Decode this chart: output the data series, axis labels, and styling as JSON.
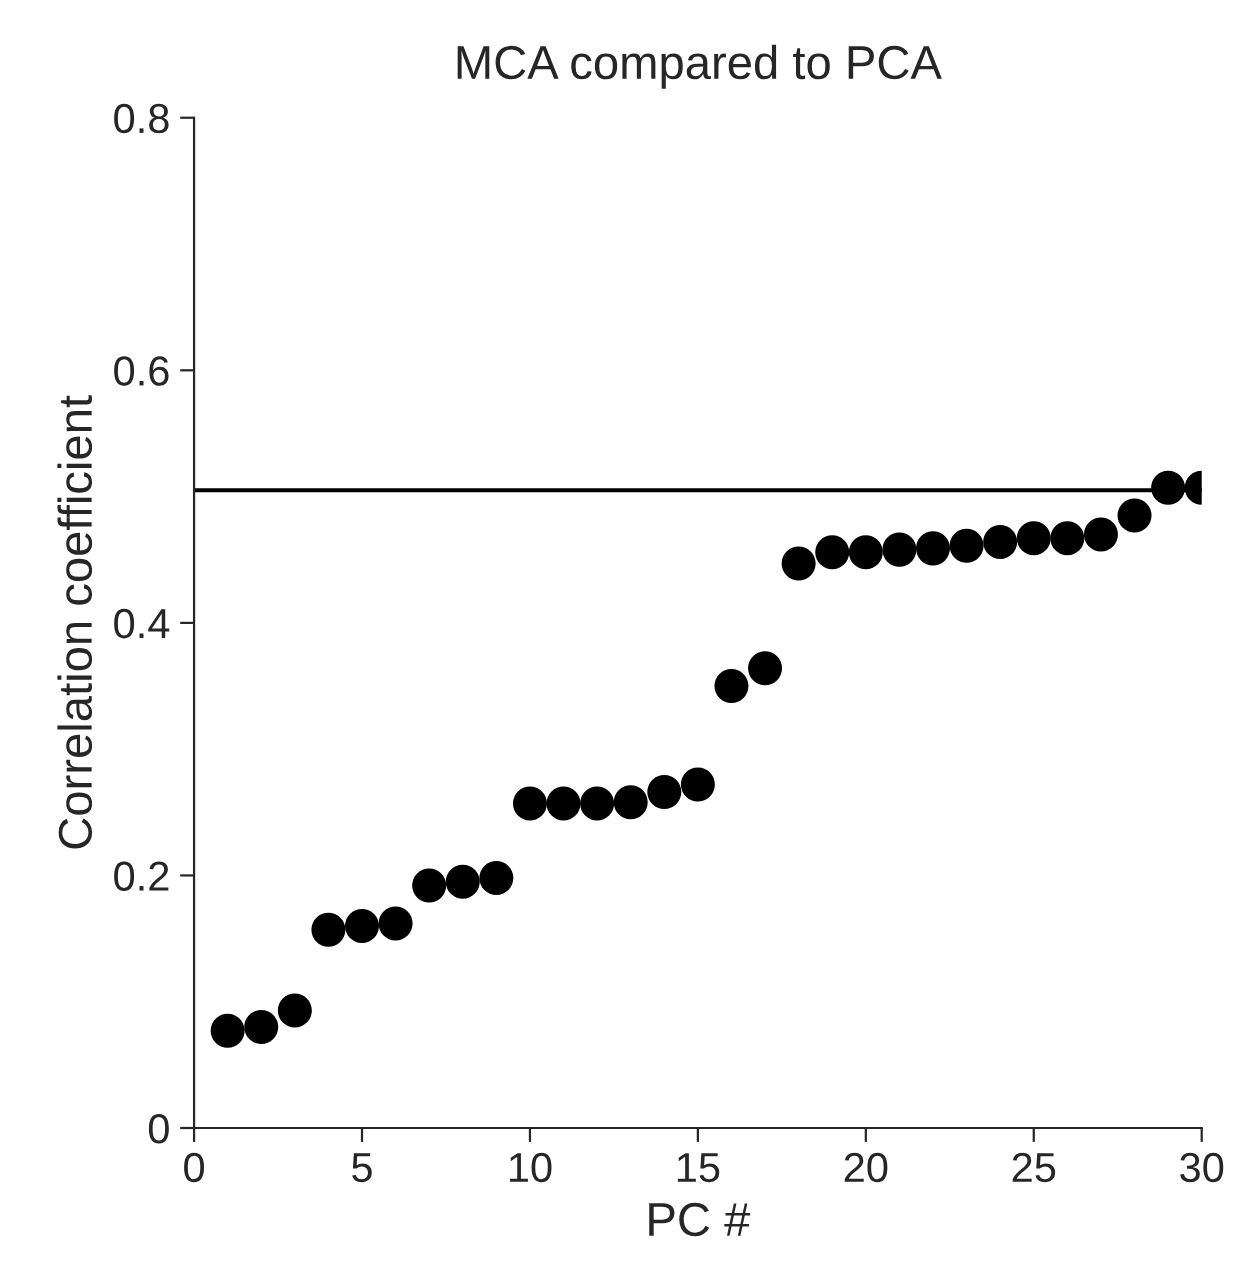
{
  "chart_data": {
    "type": "scatter",
    "title": "MCA compared to PCA",
    "xlabel": "PC #",
    "ylabel": "Correlation coefficient",
    "x": [
      1,
      2,
      3,
      4,
      5,
      6,
      7,
      8,
      9,
      10,
      11,
      12,
      13,
      14,
      15,
      16,
      17,
      18,
      19,
      20,
      21,
      22,
      23,
      24,
      25,
      26,
      27,
      28,
      29,
      30
    ],
    "series": [
      {
        "color": "#000000",
        "values": [
          0.077,
          0.08,
          0.093,
          0.157,
          0.16,
          0.162,
          0.192,
          0.195,
          0.198,
          0.257,
          0.257,
          0.257,
          0.258,
          0.266,
          0.272,
          0.35,
          0.364,
          0.447,
          0.456,
          0.456,
          0.458,
          0.459,
          0.461,
          0.464,
          0.467,
          0.467,
          0.47,
          0.485,
          0.507,
          0.507
        ]
      }
    ],
    "xlim": [
      0,
      30
    ],
    "ylim": [
      0,
      0.8
    ],
    "xticks": [
      0,
      5,
      10,
      15,
      20,
      25,
      30
    ],
    "yticks": [
      {
        "value": 0,
        "label": "0"
      },
      {
        "value": 0.2,
        "label": "0.2"
      },
      {
        "value": 0.4,
        "label": "0.4"
      },
      {
        "value": 0.6,
        "label": "0.6"
      },
      {
        "value": 0.8,
        "label": "0.8"
      }
    ],
    "ref_lines": [
      {
        "axis": "y",
        "value": 0.505,
        "color": "#000000"
      }
    ],
    "marker": "circle",
    "grid": false,
    "legend": false
  }
}
